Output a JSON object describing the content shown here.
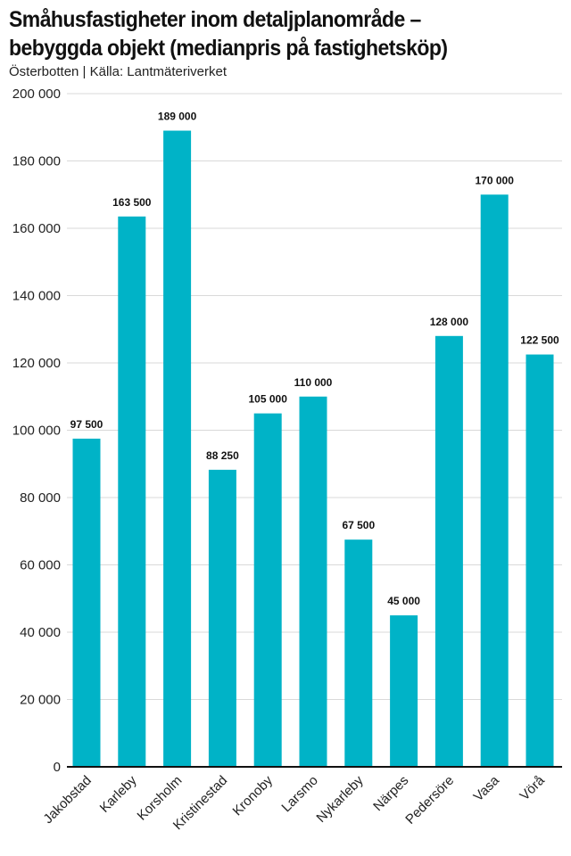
{
  "header": {
    "title": "Småhusfastigheter inom detaljplanområde – bebyggda objekt (medianpris på fastighetsköp)",
    "subtitle": "Österbotten | Källa: Lantmäteriverket"
  },
  "chart_data": {
    "type": "bar",
    "title": "Småhusfastigheter inom detaljplanområde – bebyggda objekt (medianpris på fastighetsköp)",
    "subtitle": "Österbotten | Källa: Lantmäteriverket",
    "xlabel": "",
    "ylabel": "",
    "categories": [
      "Jakobstad",
      "Karleby",
      "Korsholm",
      "Kristinestad",
      "Kronoby",
      "Larsmo",
      "Nykarleby",
      "Närpes",
      "Pedersöre",
      "Vasa",
      "Vörå"
    ],
    "values": [
      97500,
      163500,
      189000,
      88250,
      105000,
      110000,
      67500,
      45000,
      128000,
      170000,
      122500
    ],
    "value_labels": [
      "97 500",
      "163 500",
      "189 000",
      "88 250",
      "105 000",
      "110 000",
      "67 500",
      "45 000",
      "128 000",
      "170 000",
      "122 500"
    ],
    "ylim": [
      0,
      200000
    ],
    "yticks": [
      0,
      20000,
      40000,
      60000,
      80000,
      100000,
      120000,
      140000,
      160000,
      180000,
      200000
    ],
    "ytick_labels": [
      "0",
      "20 000",
      "40 000",
      "60 000",
      "80 000",
      "100 000",
      "120 000",
      "140 000",
      "160 000",
      "180 000",
      "200 000"
    ],
    "grid": true,
    "legend": "none",
    "colors": {
      "bar": "#00b3c7",
      "grid": "#d9d9d9",
      "axis": "#111111"
    }
  }
}
